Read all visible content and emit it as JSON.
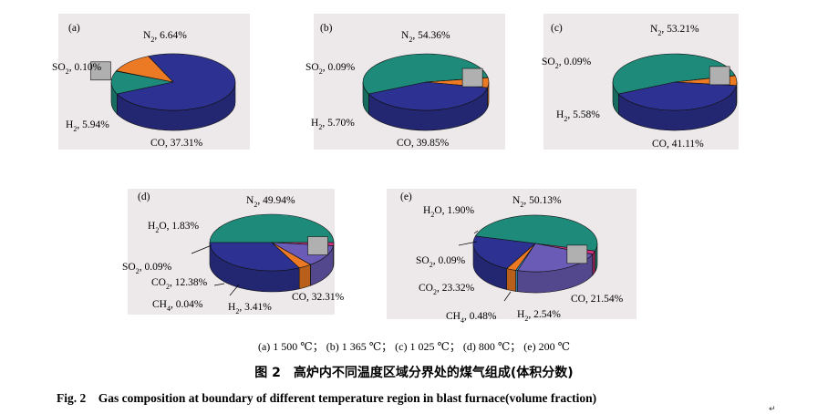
{
  "colors": {
    "background": "#ede8ea",
    "N2": "#1e8a7a",
    "SO2": "#b0b0b0",
    "H2": "#ec7a24",
    "CO": "#2d3292",
    "H2O": "#d6317f",
    "CO2": "#6a5cb6",
    "CH4": "#3aa4db"
  },
  "chart_data": [
    {
      "type": "pie",
      "panel_label": "(a)",
      "labels": [
        {
          "gas": "N2",
          "base": "N",
          "sub": "2",
          "text": ", 6.64%"
        },
        {
          "gas": "SO2",
          "base": "SO",
          "sub": "2",
          "text": ", 0.10%"
        },
        {
          "gas": "H2",
          "base": "H",
          "sub": "2",
          "text": ", 5.94%"
        },
        {
          "gas": "CO",
          "base": "CO",
          "sub": "",
          "text": ", 37.31%"
        }
      ],
      "slices": [
        {
          "gas": "N2",
          "value": 6.64
        },
        {
          "gas": "SO2",
          "value": 0.1
        },
        {
          "gas": "H2",
          "value": 5.94
        },
        {
          "gas": "CO",
          "value": 37.31
        }
      ]
    },
    {
      "type": "pie",
      "panel_label": "(b)",
      "labels": [
        {
          "gas": "N2",
          "base": "N",
          "sub": "2",
          "text": ", 54.36%"
        },
        {
          "gas": "SO2",
          "base": "SO",
          "sub": "2",
          "text": ", 0.09%"
        },
        {
          "gas": "H2",
          "base": "H",
          "sub": "2",
          "text": ", 5.70%"
        },
        {
          "gas": "CO",
          "base": "CO",
          "sub": "",
          "text": ", 39.85%"
        }
      ],
      "slices": [
        {
          "gas": "N2",
          "value": 54.36
        },
        {
          "gas": "SO2",
          "value": 0.09
        },
        {
          "gas": "H2",
          "value": 5.7
        },
        {
          "gas": "CO",
          "value": 39.85
        }
      ]
    },
    {
      "type": "pie",
      "panel_label": "(c)",
      "labels": [
        {
          "gas": "N2",
          "base": "N",
          "sub": "2",
          "text": ", 53.21%"
        },
        {
          "gas": "SO2",
          "base": "SO",
          "sub": "2",
          "text": ", 0.09%"
        },
        {
          "gas": "H2",
          "base": "H",
          "sub": "2",
          "text": ", 5.58%"
        },
        {
          "gas": "CO",
          "base": "CO",
          "sub": "",
          "text": ", 41.11%"
        }
      ],
      "slices": [
        {
          "gas": "N2",
          "value": 53.21
        },
        {
          "gas": "SO2",
          "value": 0.09
        },
        {
          "gas": "H2",
          "value": 5.58
        },
        {
          "gas": "CO",
          "value": 41.11
        }
      ]
    },
    {
      "type": "pie",
      "panel_label": "(d)",
      "labels": [
        {
          "gas": "N2",
          "base": "N",
          "sub": "2",
          "text": ", 49.94%"
        },
        {
          "gas": "H2O",
          "base": "H",
          "sub": "2",
          "after": "O",
          "text": ", 1.83%"
        },
        {
          "gas": "SO2",
          "base": "SO",
          "sub": "2",
          "text": ", 0.09%"
        },
        {
          "gas": "CO2",
          "base": "CO",
          "sub": "2",
          "text": ", 12.38%"
        },
        {
          "gas": "CH4",
          "base": "CH",
          "sub": "4",
          "text": ", 0.04%"
        },
        {
          "gas": "H2",
          "base": "H",
          "sub": "2",
          "text": ", 3.41%"
        },
        {
          "gas": "CO",
          "base": "CO",
          "sub": "",
          "text": ", 32.31%"
        }
      ],
      "slices": [
        {
          "gas": "N2",
          "value": 49.94
        },
        {
          "gas": "H2O",
          "value": 1.83
        },
        {
          "gas": "SO2",
          "value": 0.09
        },
        {
          "gas": "CO2",
          "value": 12.38
        },
        {
          "gas": "CH4",
          "value": 0.04
        },
        {
          "gas": "H2",
          "value": 3.41
        },
        {
          "gas": "CO",
          "value": 32.31
        }
      ]
    },
    {
      "type": "pie",
      "panel_label": "(e)",
      "labels": [
        {
          "gas": "H2O",
          "base": "H",
          "sub": "2",
          "after": "O",
          "text": ", 1.90%"
        },
        {
          "gas": "N2",
          "base": "N",
          "sub": "2",
          "text": ", 50.13%"
        },
        {
          "gas": "SO2",
          "base": "SO",
          "sub": "2",
          "text": ", 0.09%"
        },
        {
          "gas": "CO2",
          "base": "CO",
          "sub": "2",
          "text": ", 23.32%"
        },
        {
          "gas": "CO",
          "base": "CO",
          "sub": "",
          "text": ", 21.54%"
        },
        {
          "gas": "CH4",
          "base": "CH",
          "sub": "4",
          "text": ", 0.48%"
        },
        {
          "gas": "H2",
          "base": "H",
          "sub": "2",
          "text": ", 2.54%"
        }
      ],
      "slices": [
        {
          "gas": "N2",
          "value": 50.13
        },
        {
          "gas": "H2O",
          "value": 1.9
        },
        {
          "gas": "SO2",
          "value": 0.09
        },
        {
          "gas": "CO2",
          "value": 23.32
        },
        {
          "gas": "CH4",
          "value": 0.48
        },
        {
          "gas": "H2",
          "value": 2.54
        },
        {
          "gas": "CO",
          "value": 21.54
        }
      ]
    }
  ],
  "caption": {
    "subcaption": "(a) 1 500 ℃； (b) 1 365 ℃； (c) 1 025 ℃； (d) 800 ℃； (e) 200 ℃",
    "title_cn": "图 2　高炉内不同温度区域分界处的煤气组成(体积分数)",
    "title_en": "Fig. 2　Gas composition at boundary of different temperature region in blast furnace(volume fraction)",
    "return_mark": "↵"
  }
}
